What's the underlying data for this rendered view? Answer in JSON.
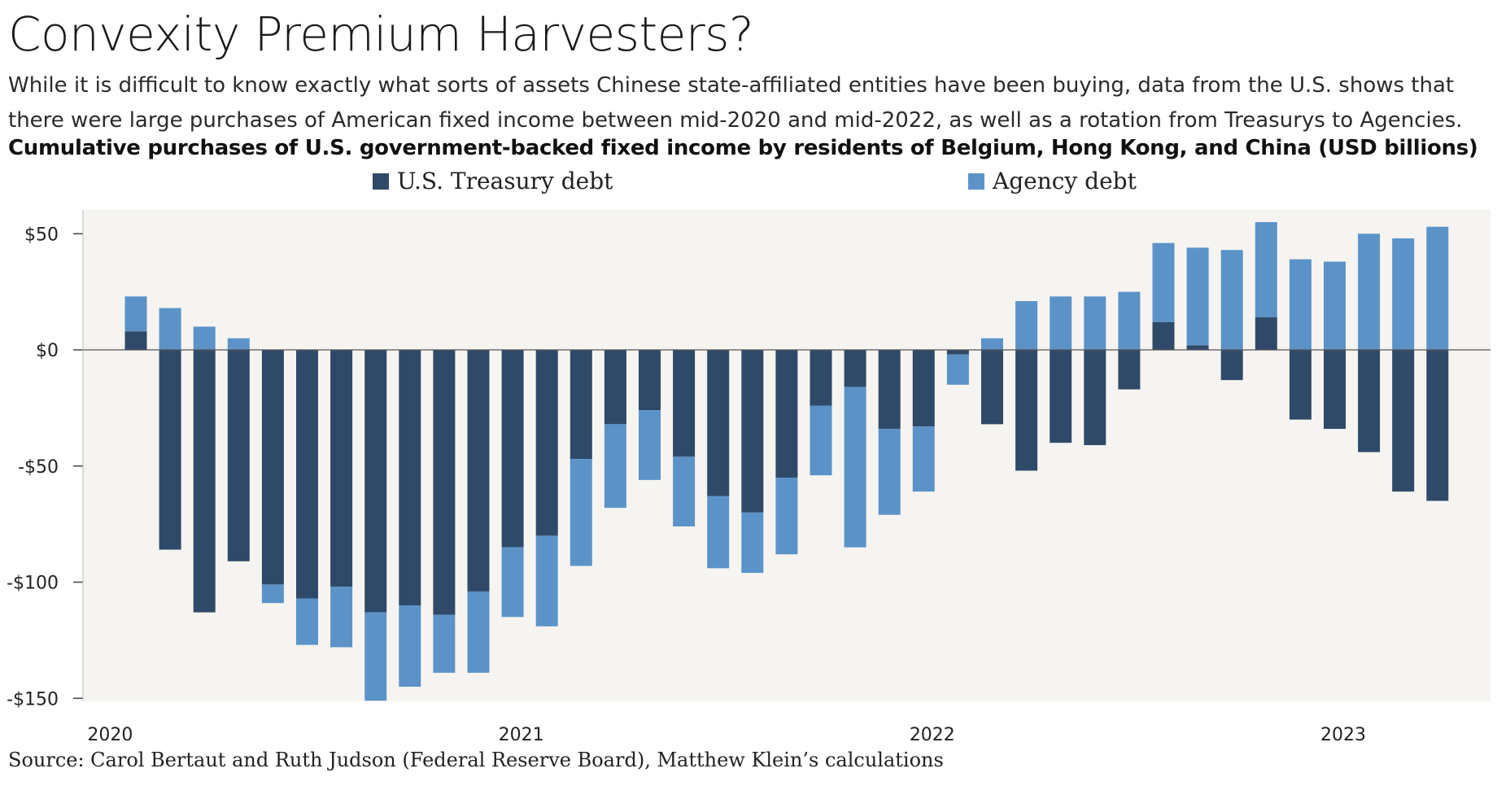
{
  "title": "Convexity Premium Harvesters?",
  "subtitle": "While it is difficult to know exactly what sorts of assets Chinese state-affiliated entities have been buying, data from the U.S. shows that there were large purchases of American fixed income between mid-2020 and mid-2022, as well as a rotation from Treasurys to Agencies.",
  "chart_title": "Cumulative purchases of U.S. government-backed fixed income by residents of Belgium, Hong Kong, and China (USD billions)",
  "source": "Source: Carol Bertaut and Ruth Judson (Federal Reserve Board), Matthew Klein’s calculations",
  "colors": {
    "treasury": "#2f4a68",
    "agency": "#5b93c9",
    "plot_bg": "#f6f4f0",
    "zero_line": "#555555"
  },
  "chart_data": {
    "type": "bar",
    "stacked": true,
    "x_tick_labels": [
      "2020",
      "2021",
      "2022",
      "2023"
    ],
    "x_tick_positions": [
      -0.75,
      11.25,
      23.25,
      35.25
    ],
    "ylim": [
      -150,
      60
    ],
    "yticks": [
      50,
      0,
      -50,
      -100,
      -150
    ],
    "ytick_labels": [
      "$50",
      "$0",
      "-$50",
      "-$100",
      "-$150"
    ],
    "legend_position": "top-center",
    "grid": false,
    "series": [
      {
        "name": "U.S. Treasury debt",
        "values": [
          8,
          -86,
          -113,
          -91,
          -101,
          -107,
          -102,
          -113,
          -110,
          -114,
          -104,
          -85,
          -80,
          -47,
          -32,
          -26,
          -46,
          -63,
          -70,
          -55,
          -24,
          -16,
          -34,
          -33,
          -2,
          -32,
          -52,
          -40,
          -41,
          -17,
          12,
          2,
          -13,
          14,
          -30,
          -34,
          -44,
          -61,
          -65
        ]
      },
      {
        "name": "Agency debt",
        "values": [
          15,
          18,
          10,
          5,
          -8,
          -20,
          -26,
          -38,
          -35,
          -25,
          -35,
          -30,
          -39,
          -46,
          -36,
          -30,
          -30,
          -31,
          -26,
          -33,
          -30,
          -69,
          -37,
          -28,
          -13,
          5,
          21,
          23,
          23,
          25,
          34,
          42,
          43,
          41,
          39,
          38,
          50,
          48,
          53
        ]
      }
    ]
  }
}
